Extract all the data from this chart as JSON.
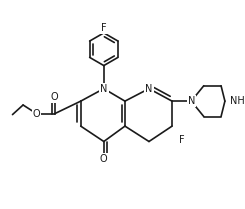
{
  "bg": "#ffffff",
  "col": "#1a1a1a",
  "lw": 1.2,
  "fs": 7.0,
  "fw": 2.45,
  "fh": 2.09,
  "dpi": 100,
  "xlim": [
    0,
    245
  ],
  "ylim": [
    0,
    209
  ]
}
